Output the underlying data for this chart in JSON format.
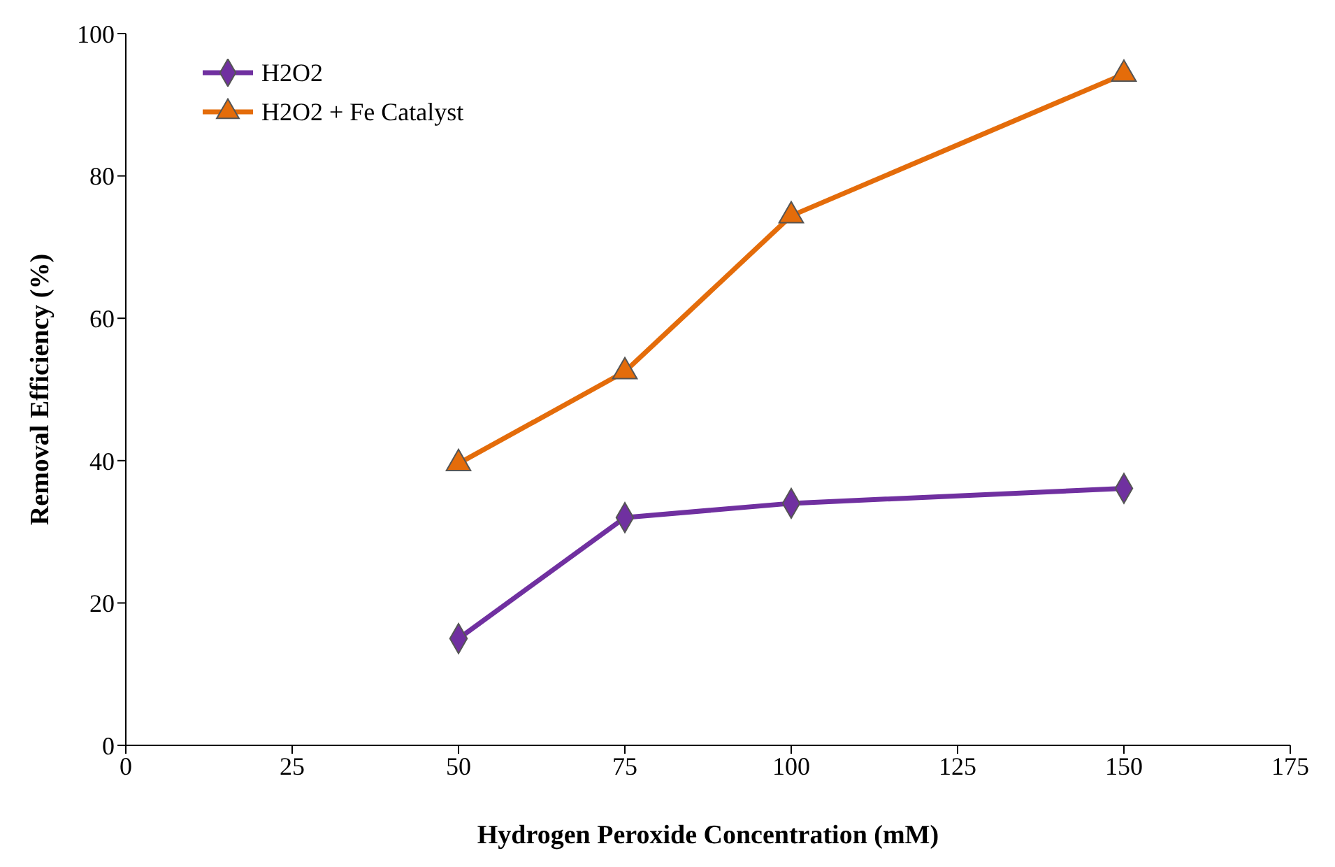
{
  "chart_data": {
    "type": "line",
    "xlabel": "Hydrogen Peroxide Concentration (mM)",
    "ylabel": "Removal Efficiency (%)",
    "x": [
      50,
      75,
      100,
      150
    ],
    "series": [
      {
        "name": "H2O2",
        "color": "#7030a0",
        "marker": "diamond",
        "values": [
          15.0,
          32.0,
          34.0,
          36.1
        ]
      },
      {
        "name": "H2O2 + Fe Catalyst",
        "color": "#e46c0a",
        "marker": "triangle",
        "values": [
          39.6,
          52.5,
          74.4,
          94.3
        ]
      }
    ],
    "xlim": [
      0,
      175
    ],
    "xticks": [
      0,
      25,
      50,
      75,
      100,
      125,
      150,
      175
    ],
    "ylim": [
      0,
      100
    ],
    "yticks": [
      0,
      20,
      40,
      60,
      80,
      100
    ],
    "grid": false,
    "legend": "top left"
  }
}
